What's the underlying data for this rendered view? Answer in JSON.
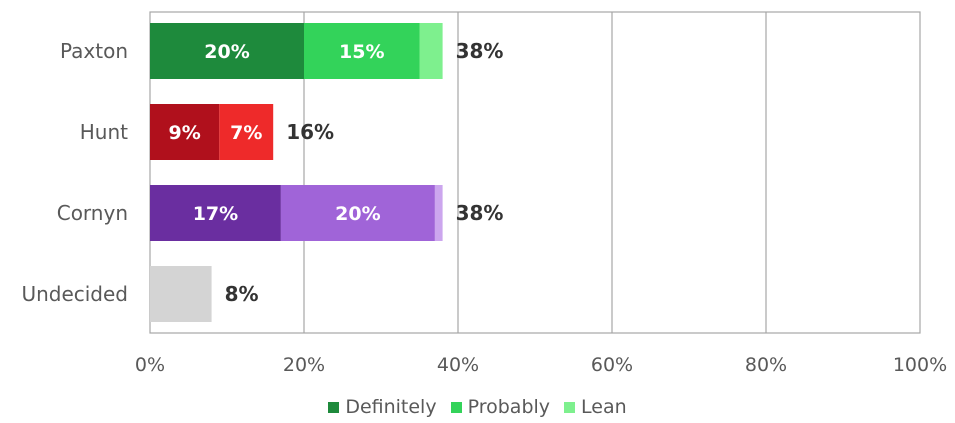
{
  "chart_data": {
    "type": "bar",
    "orientation": "horizontal",
    "stacked": true,
    "categories": [
      "Paxton",
      "Hunt",
      "Cornyn",
      "Undecided"
    ],
    "xlim": [
      0,
      100
    ],
    "xticks": [
      "0%",
      "20%",
      "40%",
      "60%",
      "80%",
      "100%"
    ],
    "grid": true,
    "legend_position": "bottom",
    "legend": [
      {
        "label": "Definitely",
        "color": "#1e8a3c"
      },
      {
        "label": "Probably",
        "color": "#33d35a"
      },
      {
        "label": "Lean",
        "color": "#7ef08e"
      }
    ],
    "rows": [
      {
        "category": "Paxton",
        "total": 38,
        "total_label": "38%",
        "segments": [
          {
            "value": 20,
            "label": "20%",
            "color": "#1e8a3c"
          },
          {
            "value": 15,
            "label": "15%",
            "color": "#33d35a"
          },
          {
            "value": 3,
            "label": "",
            "color": "#7ef08e"
          }
        ]
      },
      {
        "category": "Hunt",
        "total": 16,
        "total_label": "16%",
        "segments": [
          {
            "value": 9,
            "label": "9%",
            "color": "#b0101c"
          },
          {
            "value": 7,
            "label": "7%",
            "color": "#ee2a2a"
          }
        ]
      },
      {
        "category": "Cornyn",
        "total": 38,
        "total_label": "38%",
        "segments": [
          {
            "value": 17,
            "label": "17%",
            "color": "#6a2ea0"
          },
          {
            "value": 20,
            "label": "20%",
            "color": "#a064d8"
          },
          {
            "value": 1,
            "label": "",
            "color": "#cca6ee"
          }
        ]
      },
      {
        "category": "Undecided",
        "total": 8,
        "total_label": "8%",
        "segments": [
          {
            "value": 8,
            "label": "",
            "color": "#d4d4d4"
          }
        ]
      }
    ]
  }
}
